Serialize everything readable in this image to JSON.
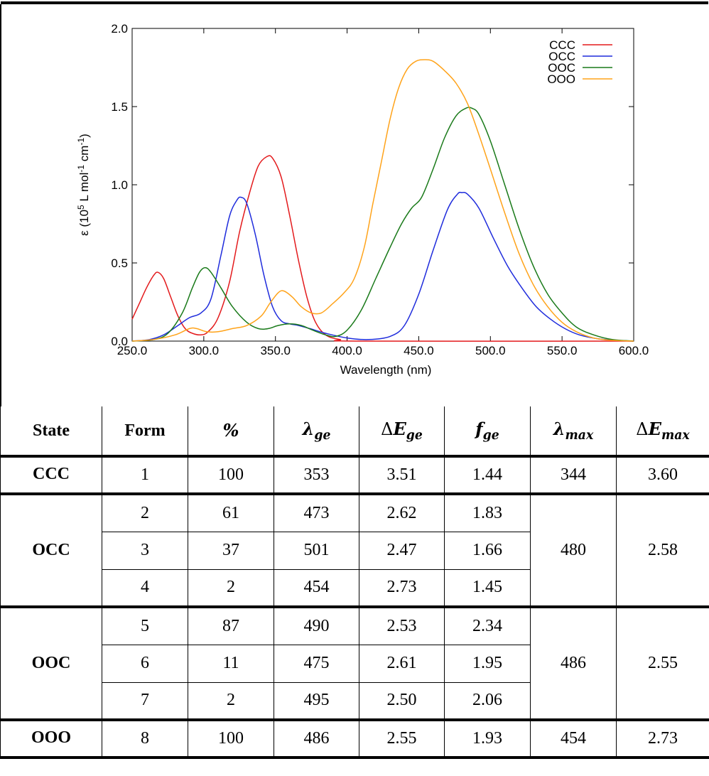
{
  "chart_data": {
    "type": "line",
    "xlabel": "Wavelength (nm)",
    "ylabel_base": "ε (10",
    "ylabel_sup1": "5",
    "ylabel_mid": " L mol",
    "ylabel_sup2": "-1",
    "ylabel_mid2": " cm",
    "ylabel_sup3": "-1",
    "ylabel_end": ")",
    "xlim": [
      250,
      600
    ],
    "ylim": [
      0,
      2.0
    ],
    "x_ticks": [
      "250.0",
      "300.0",
      "350.0",
      "400.0",
      "450.0",
      "500.0",
      "550.0",
      "600.0"
    ],
    "y_ticks": [
      "0.0",
      "0.5",
      "1.0",
      "1.5",
      "2.0"
    ],
    "legend_position": "top-right",
    "series": [
      {
        "name": "CCC",
        "color": "#e31a1c",
        "points": [
          [
            250,
            0.14
          ],
          [
            255,
            0.24
          ],
          [
            260,
            0.34
          ],
          [
            265,
            0.42
          ],
          [
            268,
            0.44
          ],
          [
            272,
            0.4
          ],
          [
            277,
            0.28
          ],
          [
            282,
            0.16
          ],
          [
            287,
            0.08
          ],
          [
            292,
            0.05
          ],
          [
            298,
            0.04
          ],
          [
            303,
            0.06
          ],
          [
            310,
            0.15
          ],
          [
            318,
            0.38
          ],
          [
            325,
            0.7
          ],
          [
            332,
            0.95
          ],
          [
            338,
            1.12
          ],
          [
            344,
            1.18
          ],
          [
            348,
            1.17
          ],
          [
            354,
            1.05
          ],
          [
            360,
            0.8
          ],
          [
            366,
            0.52
          ],
          [
            372,
            0.28
          ],
          [
            378,
            0.12
          ],
          [
            385,
            0.04
          ],
          [
            395,
            0.01
          ],
          [
            410,
            0.0
          ],
          [
            600,
            0.0
          ]
        ]
      },
      {
        "name": "OCC",
        "color": "#1f2cdc",
        "points": [
          [
            250,
            0.0
          ],
          [
            262,
            0.01
          ],
          [
            272,
            0.04
          ],
          [
            282,
            0.1
          ],
          [
            290,
            0.15
          ],
          [
            298,
            0.18
          ],
          [
            305,
            0.27
          ],
          [
            312,
            0.55
          ],
          [
            318,
            0.8
          ],
          [
            323,
            0.9
          ],
          [
            326,
            0.92
          ],
          [
            330,
            0.88
          ],
          [
            336,
            0.68
          ],
          [
            342,
            0.42
          ],
          [
            348,
            0.22
          ],
          [
            354,
            0.13
          ],
          [
            360,
            0.11
          ],
          [
            366,
            0.1
          ],
          [
            374,
            0.08
          ],
          [
            385,
            0.05
          ],
          [
            400,
            0.02
          ],
          [
            415,
            0.01
          ],
          [
            430,
            0.03
          ],
          [
            440,
            0.1
          ],
          [
            450,
            0.3
          ],
          [
            460,
            0.58
          ],
          [
            470,
            0.84
          ],
          [
            477,
            0.94
          ],
          [
            480,
            0.95
          ],
          [
            484,
            0.94
          ],
          [
            492,
            0.85
          ],
          [
            502,
            0.66
          ],
          [
            512,
            0.48
          ],
          [
            522,
            0.34
          ],
          [
            532,
            0.22
          ],
          [
            542,
            0.14
          ],
          [
            552,
            0.08
          ],
          [
            562,
            0.04
          ],
          [
            575,
            0.015
          ],
          [
            590,
            0.004
          ],
          [
            600,
            0.0
          ]
        ]
      },
      {
        "name": "OOC",
        "color": "#1a7a1a",
        "points": [
          [
            250,
            0.0
          ],
          [
            265,
            0.01
          ],
          [
            275,
            0.05
          ],
          [
            285,
            0.18
          ],
          [
            292,
            0.34
          ],
          [
            297,
            0.44
          ],
          [
            301,
            0.47
          ],
          [
            305,
            0.44
          ],
          [
            312,
            0.34
          ],
          [
            320,
            0.22
          ],
          [
            330,
            0.12
          ],
          [
            338,
            0.08
          ],
          [
            345,
            0.08
          ],
          [
            352,
            0.1
          ],
          [
            360,
            0.11
          ],
          [
            368,
            0.1
          ],
          [
            376,
            0.07
          ],
          [
            385,
            0.04
          ],
          [
            392,
            0.03
          ],
          [
            400,
            0.07
          ],
          [
            410,
            0.2
          ],
          [
            420,
            0.4
          ],
          [
            430,
            0.6
          ],
          [
            438,
            0.75
          ],
          [
            445,
            0.85
          ],
          [
            452,
            0.92
          ],
          [
            460,
            1.1
          ],
          [
            468,
            1.3
          ],
          [
            476,
            1.44
          ],
          [
            483,
            1.49
          ],
          [
            487,
            1.49
          ],
          [
            492,
            1.45
          ],
          [
            500,
            1.28
          ],
          [
            510,
            1.0
          ],
          [
            520,
            0.72
          ],
          [
            530,
            0.48
          ],
          [
            540,
            0.3
          ],
          [
            550,
            0.18
          ],
          [
            560,
            0.09
          ],
          [
            572,
            0.04
          ],
          [
            585,
            0.01
          ],
          [
            600,
            0.0
          ]
        ]
      },
      {
        "name": "OOO",
        "color": "#ffa31a",
        "points": [
          [
            250,
            0.0
          ],
          [
            265,
            0.01
          ],
          [
            280,
            0.04
          ],
          [
            290,
            0.08
          ],
          [
            295,
            0.08
          ],
          [
            302,
            0.06
          ],
          [
            310,
            0.06
          ],
          [
            320,
            0.08
          ],
          [
            330,
            0.1
          ],
          [
            340,
            0.16
          ],
          [
            346,
            0.24
          ],
          [
            352,
            0.31
          ],
          [
            356,
            0.32
          ],
          [
            362,
            0.28
          ],
          [
            368,
            0.22
          ],
          [
            375,
            0.18
          ],
          [
            382,
            0.18
          ],
          [
            390,
            0.24
          ],
          [
            398,
            0.31
          ],
          [
            405,
            0.4
          ],
          [
            412,
            0.6
          ],
          [
            418,
            0.88
          ],
          [
            424,
            1.15
          ],
          [
            430,
            1.42
          ],
          [
            436,
            1.62
          ],
          [
            442,
            1.74
          ],
          [
            448,
            1.79
          ],
          [
            454,
            1.8
          ],
          [
            460,
            1.79
          ],
          [
            468,
            1.73
          ],
          [
            476,
            1.65
          ],
          [
            484,
            1.52
          ],
          [
            492,
            1.32
          ],
          [
            500,
            1.1
          ],
          [
            510,
            0.82
          ],
          [
            520,
            0.56
          ],
          [
            530,
            0.36
          ],
          [
            540,
            0.22
          ],
          [
            550,
            0.12
          ],
          [
            560,
            0.06
          ],
          [
            572,
            0.02
          ],
          [
            585,
            0.005
          ],
          [
            600,
            0.0
          ]
        ]
      }
    ]
  },
  "table": {
    "headers": {
      "state": "State",
      "form": "Form",
      "pct": "%",
      "lge_sym": "λ",
      "lge_sub": "ge",
      "dege_delta": "Δ",
      "dege_sym": "E",
      "dege_sub": "ge",
      "fge_sym": "f",
      "fge_sub": "ge",
      "lmax_sym": "λ",
      "lmax_sub": "max",
      "demax_delta": "Δ",
      "demax_sym": "E",
      "demax_sub": "max"
    },
    "groups": [
      {
        "state": "CCC",
        "lambda_max": "344",
        "delta_e_max": "3.60",
        "rows": [
          {
            "form": "1",
            "pct": "100",
            "lambda_ge": "353",
            "delta_e_ge": "3.51",
            "f_ge": "1.44"
          }
        ]
      },
      {
        "state": "OCC",
        "lambda_max": "480",
        "delta_e_max": "2.58",
        "rows": [
          {
            "form": "2",
            "pct": "61",
            "lambda_ge": "473",
            "delta_e_ge": "2.62",
            "f_ge": "1.83"
          },
          {
            "form": "3",
            "pct": "37",
            "lambda_ge": "501",
            "delta_e_ge": "2.47",
            "f_ge": "1.66"
          },
          {
            "form": "4",
            "pct": "2",
            "lambda_ge": "454",
            "delta_e_ge": "2.73",
            "f_ge": "1.45"
          }
        ]
      },
      {
        "state": "OOC",
        "lambda_max": "486",
        "delta_e_max": "2.55",
        "rows": [
          {
            "form": "5",
            "pct": "87",
            "lambda_ge": "490",
            "delta_e_ge": "2.53",
            "f_ge": "2.34"
          },
          {
            "form": "6",
            "pct": "11",
            "lambda_ge": "475",
            "delta_e_ge": "2.61",
            "f_ge": "1.95"
          },
          {
            "form": "7",
            "pct": "2",
            "lambda_ge": "495",
            "delta_e_ge": "2.50",
            "f_ge": "2.06"
          }
        ]
      },
      {
        "state": "OOO",
        "lambda_max": "454",
        "delta_e_max": "2.73",
        "rows": [
          {
            "form": "8",
            "pct": "100",
            "lambda_ge": "486",
            "delta_e_ge": "2.55",
            "f_ge": "1.93"
          }
        ]
      }
    ]
  }
}
